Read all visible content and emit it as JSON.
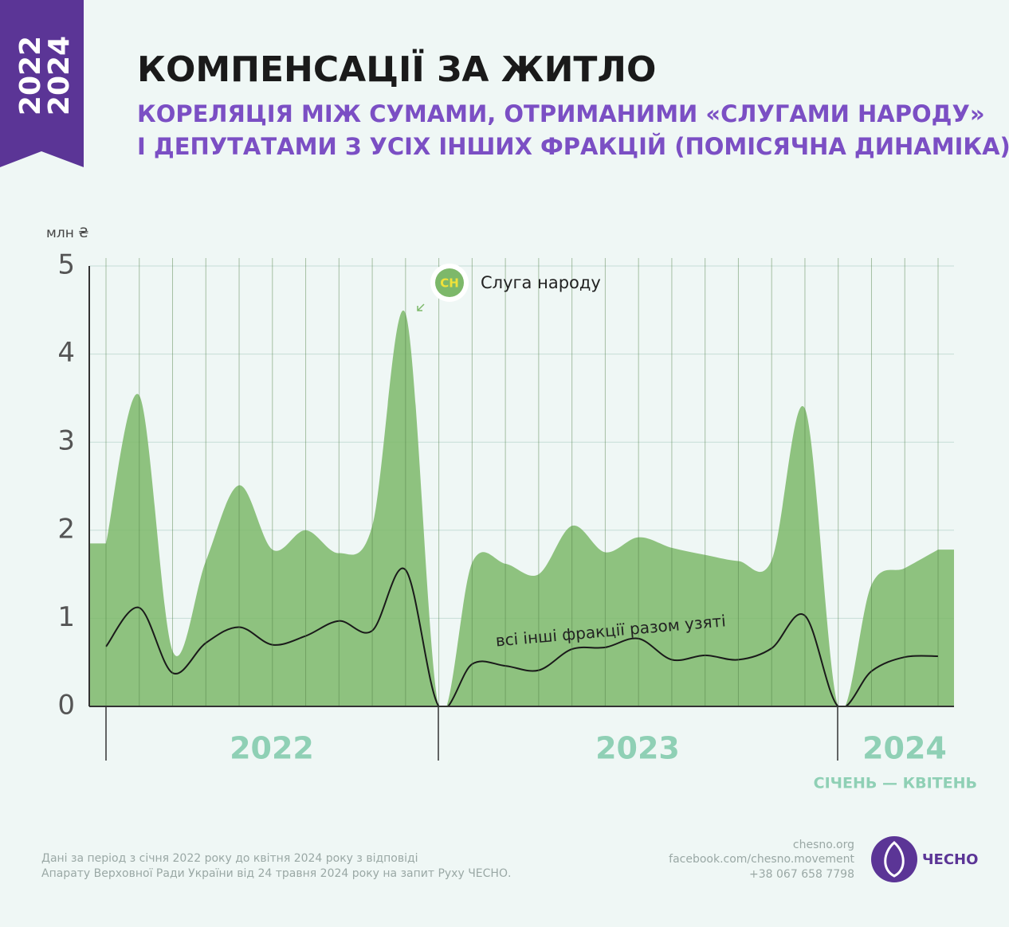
{
  "badge": [
    "2022",
    "2024"
  ],
  "chart_data": {
    "type": "area",
    "title": "КОМПЕНСАЦІЇ ЗА ЖИТЛО",
    "subtitle": [
      "КОРЕЛЯЦІЯ МІЖ СУМАМИ, ОТРИМАНИМИ «СЛУГАМИ НАРОДУ»",
      "І ДЕПУТАТАМИ З УСІХ ІНШИХ ФРАКЦІЙ (ПОМІСЯЧНА ДИНАМІКА)"
    ],
    "y_unit": "млн ₴",
    "categories": [
      null,
      null,
      null,
      null,
      null,
      null,
      null,
      null,
      null,
      null,
      null,
      null,
      null,
      null,
      null,
      null,
      null,
      null,
      null,
      null,
      null,
      null,
      null,
      null,
      null,
      null
    ],
    "series": [
      {
        "name": "Слуга народу",
        "icon": "СН",
        "color": "#7db86a",
        "values": [
          1.85,
          3.53,
          0.63,
          1.65,
          2.51,
          1.78,
          2.0,
          1.74,
          2.05,
          4.46,
          0,
          1.63,
          1.62,
          1.5,
          2.05,
          1.75,
          1.92,
          1.8,
          1.72,
          1.65,
          1.66,
          3.38,
          0,
          1.38,
          1.57,
          1.78
        ]
      },
      {
        "name": "всі інші фракції разом узяті",
        "color": "#1a1a1a",
        "values": [
          0.68,
          1.12,
          0.38,
          0.72,
          0.9,
          0.7,
          0.8,
          0.97,
          0.86,
          1.55,
          0,
          0.48,
          0.46,
          0.41,
          0.65,
          0.67,
          0.77,
          0.53,
          0.58,
          0.53,
          0.66,
          1.03,
          0,
          0.4,
          0.56,
          0.57
        ]
      }
    ],
    "periods": [
      {
        "label": "2022"
      },
      {
        "label": "2023"
      },
      {
        "label": "2024",
        "note": "СІЧЕНЬ — КВІТЕНЬ"
      }
    ],
    "ylim": [
      0,
      5
    ],
    "yticks": [
      0,
      1,
      2,
      3,
      4,
      5
    ],
    "grid": true
  },
  "footer": {
    "source": [
      "Дані за період з січня 2022 року до квітня 2024 року з відповіді",
      "Апарату Верховної Ради України від 24 травня 2024 року на запит Руху ЧЕСНО."
    ],
    "contacts": [
      "chesno.org",
      "facebook.com/chesno.movement",
      "+38 067 658 7798"
    ],
    "logo": "ЧЕСНО"
  }
}
